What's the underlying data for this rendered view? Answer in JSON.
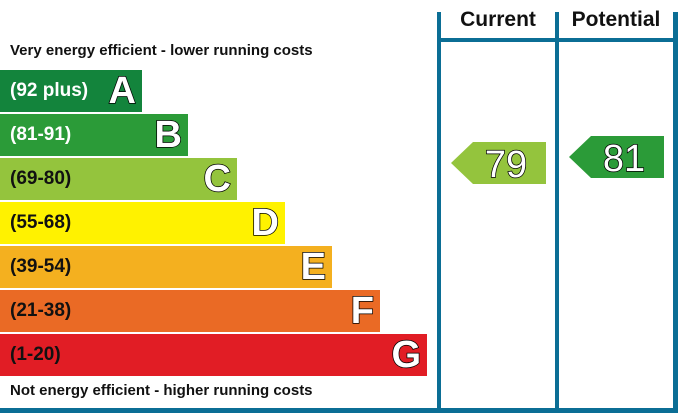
{
  "chart_data": {
    "type": "bar",
    "title": "",
    "top_caption": "Very energy efficient - lower running costs",
    "bottom_caption": "Not energy efficient - higher running costs",
    "columns": [
      "Current",
      "Potential"
    ],
    "bands": [
      {
        "letter": "A",
        "range": "(92 plus)",
        "color": "#13843c",
        "text_color": "#ffffff"
      },
      {
        "letter": "B",
        "range": "(81-91)",
        "color": "#2b9b38",
        "text_color": "#ffffff"
      },
      {
        "letter": "C",
        "range": "(69-80)",
        "color": "#94c43d",
        "text_color": "#111111"
      },
      {
        "letter": "D",
        "range": "(55-68)",
        "color": "#fff200",
        "text_color": "#111111"
      },
      {
        "letter": "E",
        "range": "(39-54)",
        "color": "#f4b01f",
        "text_color": "#111111"
      },
      {
        "letter": "F",
        "range": "(21-38)",
        "color": "#ea6a25",
        "text_color": "#111111"
      },
      {
        "letter": "G",
        "range": "(1-20)",
        "color": "#e11d25",
        "text_color": "#111111"
      }
    ],
    "current": {
      "value": 79,
      "band": "C",
      "color": "#94c43d"
    },
    "potential": {
      "value": 81,
      "band": "B",
      "color": "#2b9b38"
    },
    "frame_color": "#0b6e95"
  }
}
